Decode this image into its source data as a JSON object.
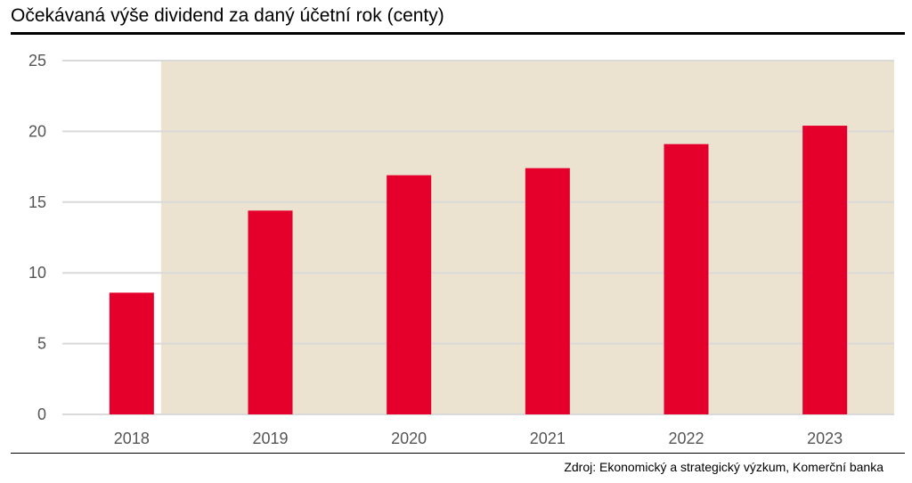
{
  "chart_data": {
    "type": "bar",
    "title": "Očekávaná výše dividend za daný účetní rok (centy)",
    "categories": [
      "2018",
      "2019",
      "2020",
      "2021",
      "2022",
      "2023"
    ],
    "values": [
      8.6,
      14.4,
      16.9,
      17.4,
      19.1,
      20.4
    ],
    "ylim": [
      0,
      25
    ],
    "yticks": [
      0,
      5,
      10,
      15,
      20,
      25
    ],
    "xlabel": "",
    "ylabel": "",
    "grid": true,
    "forecast_from_category": "2019",
    "colors": {
      "bar": "#e4002b",
      "forecast_shading": "#ebe2cf",
      "grid": "#d9d9d9",
      "axis_text": "#555555"
    }
  },
  "source": "Zdroj: Ekonomický a strategický výzkum, Komerční banka"
}
